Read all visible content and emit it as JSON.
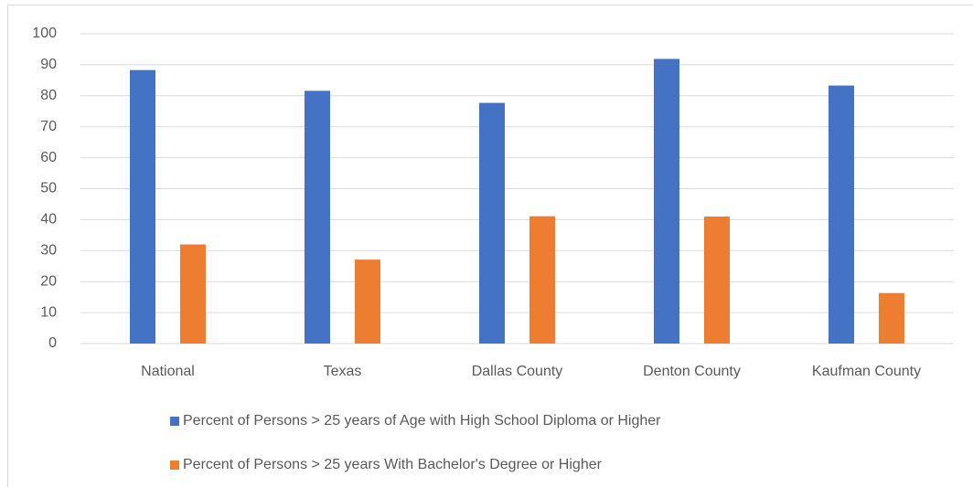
{
  "chart_data": {
    "type": "bar",
    "categories": [
      "National",
      "Texas",
      "Dallas County",
      "Denton County",
      "Kaufman County"
    ],
    "series": [
      {
        "name": "Percent of Persons > 25 years of Age with High School Diploma or Higher",
        "color": "#4472c4",
        "values": [
          88.3,
          81.6,
          77.7,
          91.9,
          83.3
        ]
      },
      {
        "name": "Percent of Persons > 25 years With Bachelor's Degree or Higher",
        "color": "#ed7d31",
        "values": [
          32,
          27.1,
          41.1,
          41,
          16.3
        ]
      }
    ],
    "ylim": [
      0,
      100
    ],
    "yticks": [
      0,
      10,
      20,
      30,
      40,
      50,
      60,
      70,
      80,
      90,
      100
    ],
    "grid": true,
    "legend": "bottom"
  }
}
